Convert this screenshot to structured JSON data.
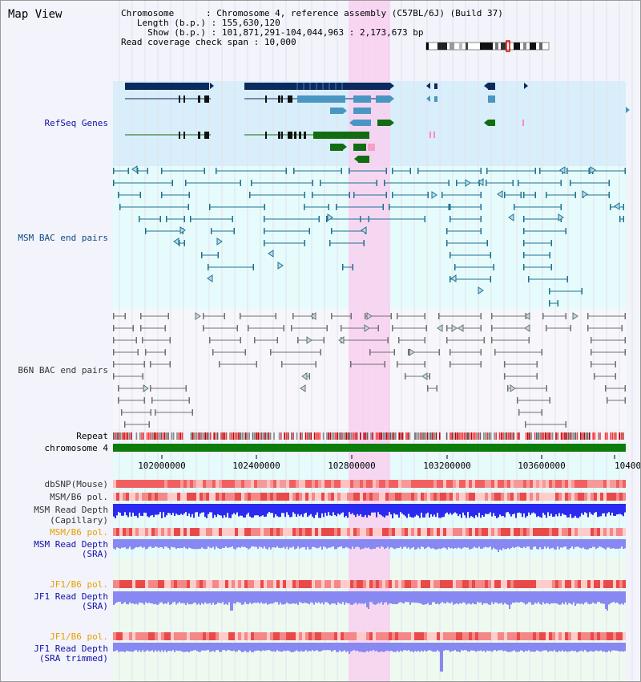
{
  "title": "Map View",
  "info": {
    "chromosome_key": "Chromosome",
    "chromosome_val": "Chromosome 4, reference assembly (C57BL/6J) (Build 37)",
    "length_key": "Length (b.p.)",
    "length_val": "155,630,120",
    "show_key": "Show (b.p.)",
    "show_val": "101,871,291-104,044,963 : 2,173,673 bp",
    "read_key": "Read coverage check span",
    "read_val": "10,000"
  },
  "tracks": {
    "refseq": "RefSeq Genes",
    "msm_bac": "MSM BAC end pairs",
    "b6n_bac": "B6N BAC end pairs",
    "repeat": "Repeat",
    "chromosome": "chromosome 4",
    "dbsnp": "dbSNP(Mouse)",
    "msm_b6_pol_1": "MSM/B6 pol.",
    "msm_read_depth_cap_1": "MSM Read Depth",
    "msm_read_depth_cap_2": "(Capillary)",
    "msm_b6_pol_2": "MSM/B6 pol.",
    "msm_read_depth_sra_1": "MSM Read Depth",
    "msm_read_depth_sra_2": "(SRA)",
    "jf1_b6_pol_1": "JF1/B6 pol.",
    "jf1_read_depth_sra_1": "JF1 Read Depth",
    "jf1_read_depth_sra_2": "(SRA)",
    "jf1_b6_pol_2": "JF1/B6 pol.",
    "jf1_read_depth_trim_1": "JF1 Read Depth",
    "jf1_read_depth_trim_2": "(SRA trimmed)"
  },
  "axis": {
    "ticks": [
      "102000000",
      "102400000",
      "102800000",
      "103200000",
      "103600000",
      "10400"
    ]
  },
  "colors": {
    "highlight": "#f8d0f0",
    "refseq_bg": "#d8eefa",
    "msm_bg": "#e6fbfb",
    "gene_dark": "#0b2b5e",
    "gene_mid": "#4a96c2",
    "gene_green": "#126d12",
    "msm_pair": "#1f7290",
    "b6n_pair": "#707070",
    "chrom_green": "#0b7d0b",
    "depth_blue": "#2a2af0",
    "depth_light": "#8888f2",
    "msm_label": "#0b4a86",
    "orange_label": "#e6a000",
    "navy_label": "#1010a8"
  }
}
